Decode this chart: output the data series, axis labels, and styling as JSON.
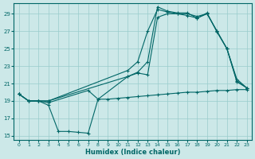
{
  "xlabel": "Humidex (Indice chaleur)",
  "bg_color": "#cce8e8",
  "grid_color": "#99cccc",
  "line_color": "#006666",
  "xlim": [
    -0.5,
    23.5
  ],
  "ylim": [
    14.5,
    30.2
  ],
  "yticks": [
    15,
    17,
    19,
    21,
    23,
    25,
    27,
    29
  ],
  "xticks": [
    0,
    1,
    2,
    3,
    4,
    5,
    6,
    7,
    8,
    9,
    10,
    11,
    12,
    13,
    14,
    15,
    16,
    17,
    18,
    19,
    20,
    21,
    22,
    23
  ],
  "line1_x": [
    0,
    1,
    2,
    3,
    4,
    5,
    6,
    7,
    8,
    9,
    10,
    11,
    12,
    13,
    14,
    15,
    16,
    17,
    18,
    19,
    20,
    21,
    22,
    23
  ],
  "line1_y": [
    19.8,
    19.0,
    19.0,
    18.5,
    15.5,
    15.5,
    15.4,
    15.3,
    19.2,
    19.2,
    19.3,
    19.4,
    19.5,
    19.6,
    19.7,
    19.8,
    19.9,
    20.0,
    20.0,
    20.1,
    20.2,
    20.2,
    20.3,
    20.3
  ],
  "line2_x": [
    0,
    1,
    2,
    3,
    11,
    12,
    13,
    14,
    15,
    16,
    17,
    18,
    19,
    20,
    21,
    22,
    23
  ],
  "line2_y": [
    19.8,
    19.0,
    19.0,
    19.0,
    22.5,
    23.5,
    27.0,
    29.5,
    29.2,
    29.0,
    29.0,
    28.7,
    29.0,
    27.0,
    25.0,
    21.5,
    20.5
  ],
  "line3_x": [
    0,
    1,
    2,
    3,
    11,
    12,
    13,
    14,
    15,
    16,
    17,
    18,
    19,
    20,
    21,
    22,
    23
  ],
  "line3_y": [
    19.8,
    19.0,
    19.0,
    19.0,
    21.8,
    22.3,
    23.5,
    29.8,
    29.3,
    29.1,
    29.1,
    28.5,
    29.0,
    27.0,
    25.0,
    21.3,
    20.5
  ],
  "line4_x": [
    0,
    1,
    2,
    3,
    7,
    8,
    11,
    12,
    13,
    14,
    15,
    16,
    17,
    18,
    19,
    20,
    21,
    22,
    23
  ],
  "line4_y": [
    19.8,
    19.0,
    19.0,
    18.8,
    20.2,
    19.2,
    21.8,
    22.2,
    22.0,
    28.6,
    29.0,
    29.0,
    28.8,
    28.5,
    29.1,
    26.9,
    25.0,
    21.2,
    20.5
  ]
}
